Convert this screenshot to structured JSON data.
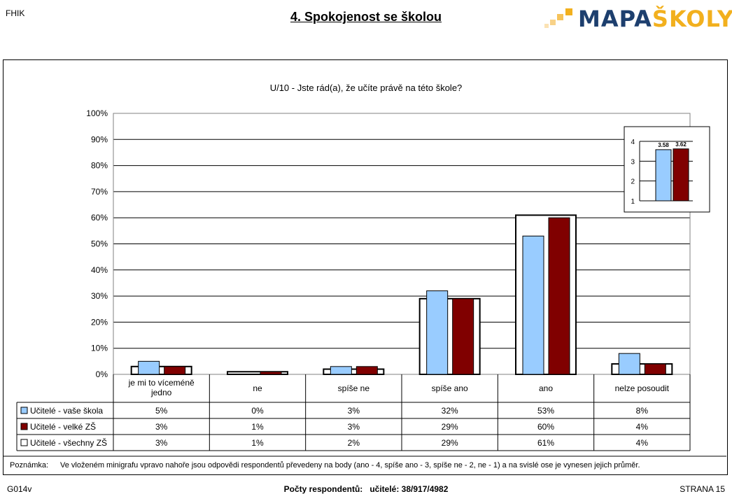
{
  "header": {
    "left": "FHIK",
    "title": "4. Spokojenost se školou"
  },
  "logo": {
    "part1": "MAPA",
    "part2": "ŠKOLY"
  },
  "question": "U/10 - Jste rád(a), že učíte právě na této škole?",
  "chart_data": {
    "type": "bar",
    "categories": [
      "je mi to víceméně jedno",
      "ne",
      "spíše ne",
      "spíše ano",
      "ano",
      "nelze posoudit"
    ],
    "categories_lines": [
      [
        "je mi to víceméně",
        "jedno"
      ],
      [
        "ne"
      ],
      [
        "spíše ne"
      ],
      [
        "spíše ano"
      ],
      [
        "ano"
      ],
      [
        "nelze posoudit"
      ]
    ],
    "y_ticks": [
      "100%",
      "90%",
      "80%",
      "70%",
      "60%",
      "50%",
      "40%",
      "30%",
      "20%",
      "10%",
      "0%"
    ],
    "ylim": [
      0,
      100
    ],
    "grid": true,
    "series": [
      {
        "name": "Učitelé - vaše škola",
        "color": "#99ccff",
        "values": [
          5,
          0,
          3,
          32,
          53,
          8
        ],
        "labels": [
          "5%",
          "0%",
          "3%",
          "32%",
          "53%",
          "8%"
        ]
      },
      {
        "name": "Učitelé - velké ZŠ",
        "color": "#800000",
        "values": [
          3,
          1,
          3,
          29,
          60,
          4
        ],
        "labels": [
          "3%",
          "1%",
          "3%",
          "29%",
          "60%",
          "4%"
        ]
      },
      {
        "name": "Učitelé - všechny ZŠ",
        "color": "#ffffff",
        "values": [
          3,
          1,
          2,
          29,
          61,
          4
        ],
        "labels": [
          "3%",
          "1%",
          "2%",
          "29%",
          "61%",
          "4%"
        ]
      }
    ],
    "mini": {
      "type": "bar",
      "y_ticks": [
        "4",
        "3",
        "2",
        "1"
      ],
      "ylim": [
        1,
        4
      ],
      "values": [
        3.58,
        3.62
      ],
      "labels": [
        "3.58",
        "3.62"
      ],
      "colors": [
        "#99ccff",
        "#800000"
      ]
    }
  },
  "note": {
    "label": "Poznámka:",
    "text": "Ve vloženém minigrafu vpravo nahoře jsou odpovědi respondentů převedeny na body (ano - 4, spíše ano - 3, spíše ne - 2, ne - 1) a na svislé ose je vynesen jejich průměr."
  },
  "footer": {
    "left": "G014v",
    "center_label": "Počty respondentů:",
    "center_value": "učitelé: 38/917/4982",
    "right": "STRANA 15"
  }
}
